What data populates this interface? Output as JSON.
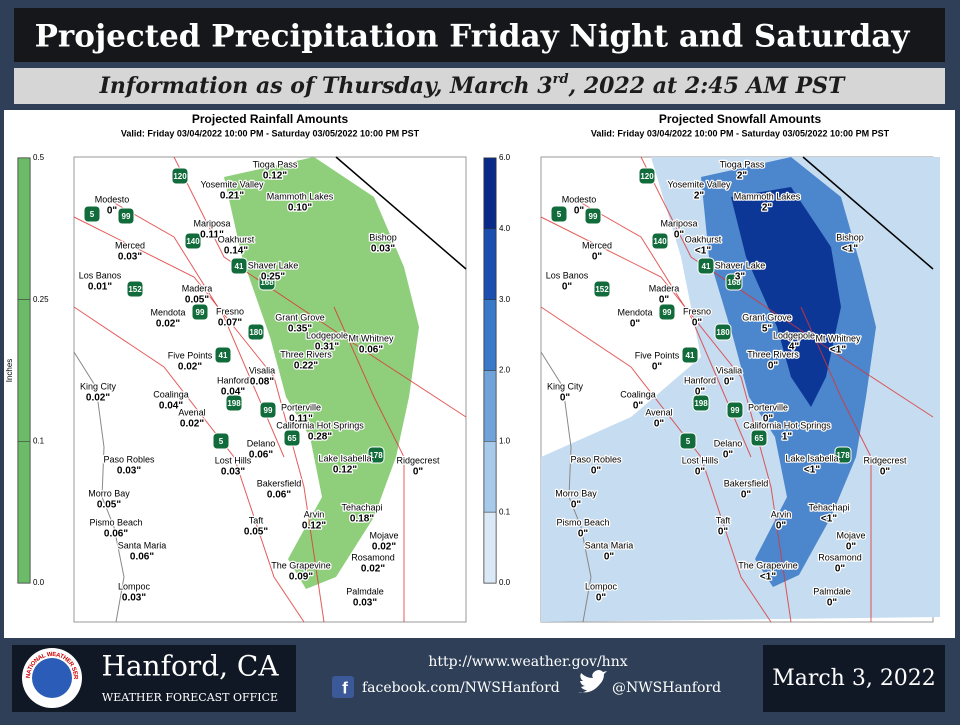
{
  "header": {
    "title": "Projected Precipitation Friday Night and Saturday",
    "subtitle_parts": [
      "Information as of Thursday, March 3",
      "rd",
      ", 2022 at 2:45 AM PST"
    ]
  },
  "maps": [
    {
      "title": "Projected Rainfall Amounts",
      "valid": "Valid: Friday 03/04/2022 10:00 PM - Saturday 03/05/2022 10:00 PM PST",
      "colorbar_label": "Inches",
      "colorbar_ticks": [
        "0.5",
        "0.25",
        "0.1",
        "0.0"
      ],
      "places": [
        {
          "name": "Tioga Pass",
          "value": "0.12\""
        },
        {
          "name": "Yosemite Valley",
          "value": "0.21\""
        },
        {
          "name": "Mammoth Lakes",
          "value": "0.10\""
        },
        {
          "name": "Modesto",
          "value": "0\""
        },
        {
          "name": "Mariposa",
          "value": "0.11\""
        },
        {
          "name": "Merced",
          "value": "0.03\""
        },
        {
          "name": "Oakhurst",
          "value": "0.14\""
        },
        {
          "name": "Bishop",
          "value": "0.03\""
        },
        {
          "name": "Los Banos",
          "value": "0.01\""
        },
        {
          "name": "Shaver Lake",
          "value": "0.25\""
        },
        {
          "name": "Madera",
          "value": "0.05\""
        },
        {
          "name": "Mendota",
          "value": "0.02\""
        },
        {
          "name": "Fresno",
          "value": "0.07\""
        },
        {
          "name": "Grant Grove",
          "value": "0.35\""
        },
        {
          "name": "Lodgepole",
          "value": "0.31\""
        },
        {
          "name": "Mt Whitney",
          "value": "0.06\""
        },
        {
          "name": "Three Rivers",
          "value": "0.22\""
        },
        {
          "name": "Five Points",
          "value": "0.02\""
        },
        {
          "name": "Visalia",
          "value": "0.08\""
        },
        {
          "name": "King City",
          "value": "0.02\""
        },
        {
          "name": "Coalinga",
          "value": "0.04\""
        },
        {
          "name": "Hanford",
          "value": "0.04\""
        },
        {
          "name": "Avenal",
          "value": "0.02\""
        },
        {
          "name": "Porterville",
          "value": "0.11\""
        },
        {
          "name": "California Hot Springs",
          "value": "0.28\""
        },
        {
          "name": "Delano",
          "value": "0.06\""
        },
        {
          "name": "Paso Robles",
          "value": "0.03\""
        },
        {
          "name": "Lost Hills",
          "value": "0.03\""
        },
        {
          "name": "Lake Isabella",
          "value": "0.12\""
        },
        {
          "name": "Ridgecrest",
          "value": "0\""
        },
        {
          "name": "Morro Bay",
          "value": "0.05\""
        },
        {
          "name": "Bakersfield",
          "value": "0.06\""
        },
        {
          "name": "Pismo Beach",
          "value": "0.06\""
        },
        {
          "name": "Taft",
          "value": "0.05\""
        },
        {
          "name": "Arvin",
          "value": "0.12\""
        },
        {
          "name": "Tehachapi",
          "value": "0.18\""
        },
        {
          "name": "Mojave",
          "value": "0.02\""
        },
        {
          "name": "Santa Maria",
          "value": "0.06\""
        },
        {
          "name": "Rosamond",
          "value": "0.02\""
        },
        {
          "name": "The Grapevine",
          "value": "0.09\""
        },
        {
          "name": "Lompoc",
          "value": "0.03\""
        },
        {
          "name": "Palmdale",
          "value": "0.03\""
        }
      ],
      "highways": [
        "120",
        "5",
        "99",
        "140",
        "41",
        "168",
        "152",
        "99",
        "180",
        "41",
        "198",
        "99",
        "5",
        "65",
        "178"
      ]
    },
    {
      "title": "Projected Snowfall Amounts",
      "valid": "Valid: Friday 03/04/2022 10:00 PM - Saturday 03/05/2022 10:00 PM PST",
      "colorbar_ticks": [
        "6.0",
        "4.0",
        "3.0",
        "2.0",
        "1.0",
        "0.1",
        "0.0"
      ],
      "places": [
        {
          "name": "Tioga Pass",
          "value": "2\""
        },
        {
          "name": "Yosemite Valley",
          "value": "2\""
        },
        {
          "name": "Mammoth Lakes",
          "value": "2\""
        },
        {
          "name": "Modesto",
          "value": "0\""
        },
        {
          "name": "Mariposa",
          "value": "0\""
        },
        {
          "name": "Merced",
          "value": "0\""
        },
        {
          "name": "Oakhurst",
          "value": "<1\""
        },
        {
          "name": "Bishop",
          "value": "<1\""
        },
        {
          "name": "Los Banos",
          "value": "0\""
        },
        {
          "name": "Shaver Lake",
          "value": "3\""
        },
        {
          "name": "Madera",
          "value": "0\""
        },
        {
          "name": "Mendota",
          "value": "0\""
        },
        {
          "name": "Fresno",
          "value": "0\""
        },
        {
          "name": "Grant Grove",
          "value": "5\""
        },
        {
          "name": "Lodgepole",
          "value": "4\""
        },
        {
          "name": "Mt Whitney",
          "value": "<1\""
        },
        {
          "name": "Three Rivers",
          "value": "0\""
        },
        {
          "name": "Five Points",
          "value": "0\""
        },
        {
          "name": "Visalia",
          "value": "0\""
        },
        {
          "name": "King City",
          "value": "0\""
        },
        {
          "name": "Coalinga",
          "value": "0\""
        },
        {
          "name": "Hanford",
          "value": "0\""
        },
        {
          "name": "Avenal",
          "value": "0\""
        },
        {
          "name": "Porterville",
          "value": "0\""
        },
        {
          "name": "California Hot Springs",
          "value": "1\""
        },
        {
          "name": "Delano",
          "value": "0\""
        },
        {
          "name": "Paso Robles",
          "value": "0\""
        },
        {
          "name": "Lost Hills",
          "value": "0\""
        },
        {
          "name": "Lake Isabella",
          "value": "<1\""
        },
        {
          "name": "Ridgecrest",
          "value": "0\""
        },
        {
          "name": "Morro Bay",
          "value": "0\""
        },
        {
          "name": "Bakersfield",
          "value": "0\""
        },
        {
          "name": "Pismo Beach",
          "value": "0\""
        },
        {
          "name": "Taft",
          "value": "0\""
        },
        {
          "name": "Arvin",
          "value": "0\""
        },
        {
          "name": "Tehachapi",
          "value": "<1\""
        },
        {
          "name": "Mojave",
          "value": "0\""
        },
        {
          "name": "Santa Maria",
          "value": "0\""
        },
        {
          "name": "Rosamond",
          "value": "0\""
        },
        {
          "name": "The Grapevine",
          "value": "<1\""
        },
        {
          "name": "Lompoc",
          "value": "0\""
        },
        {
          "name": "Palmdale",
          "value": "0\""
        }
      ],
      "highways": [
        "120",
        "5",
        "99",
        "140",
        "41",
        "168",
        "152",
        "99",
        "180",
        "41",
        "198",
        "99",
        "5",
        "65",
        "178"
      ]
    }
  ],
  "footer": {
    "logo_text": "NATIONAL WEATHER SERVICE",
    "office_name": "Hanford, CA",
    "office_subtitle": "WEATHER FORECAST OFFICE",
    "links": [
      "http://www.weather.gov/hnx",
      "facebook.com/NWSHanford",
      "@NWSHanford"
    ],
    "date": "March 3, 2022"
  }
}
